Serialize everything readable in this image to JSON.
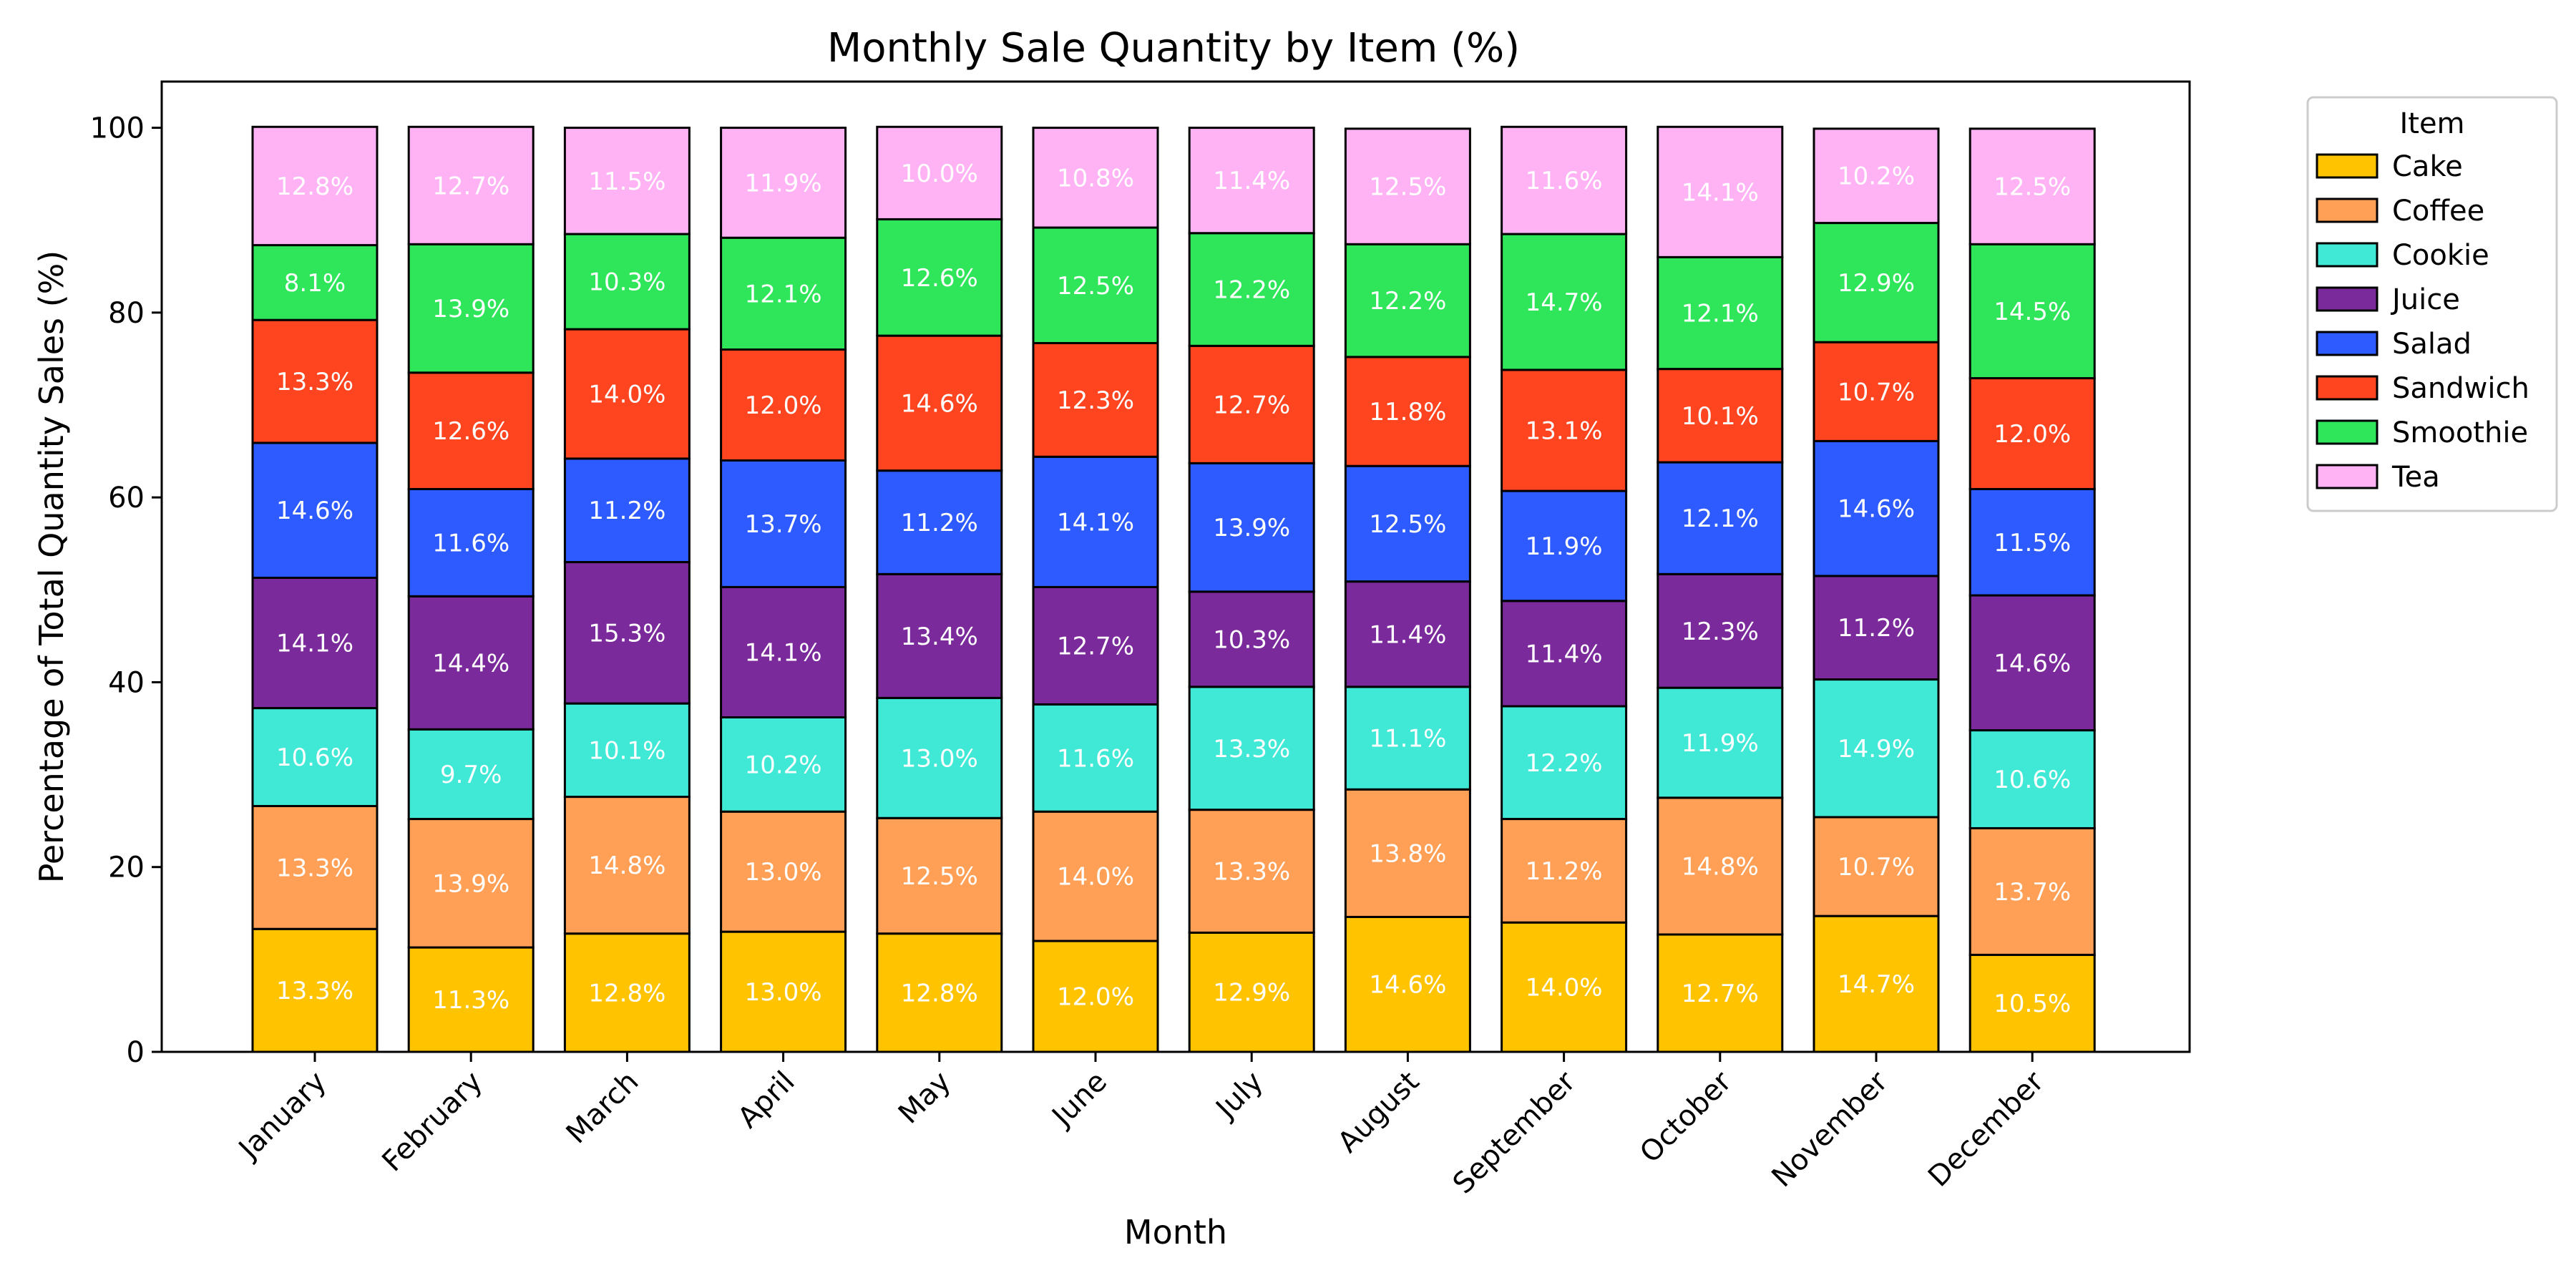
{
  "chart_data": {
    "type": "bar",
    "stacked": true,
    "title": "Monthly Sale Quantity by Item (%)",
    "xlabel": "Month",
    "ylabel": "Percentage of Total Quantity Sales (%)",
    "ylim": [
      0,
      105
    ],
    "yticks": [
      "0",
      "20",
      "40",
      "60",
      "80",
      "100"
    ],
    "grid": false,
    "legend": {
      "title": "Item",
      "placement": "outside-top-right"
    },
    "categories": [
      "January",
      "February",
      "March",
      "April",
      "May",
      "June",
      "July",
      "August",
      "September",
      "October",
      "November",
      "December"
    ],
    "series": [
      {
        "name": "Cake",
        "color": "#FFC300",
        "values": [
          13.3,
          11.3,
          12.8,
          13.0,
          12.8,
          12.0,
          12.9,
          14.6,
          14.0,
          12.7,
          14.7,
          10.5
        ]
      },
      {
        "name": "Coffee",
        "color": "#FFA056",
        "values": [
          13.3,
          13.9,
          14.8,
          13.0,
          12.5,
          14.0,
          13.3,
          13.8,
          11.2,
          14.8,
          10.7,
          13.7
        ]
      },
      {
        "name": "Cookie",
        "color": "#40E8D6",
        "values": [
          10.6,
          9.7,
          10.1,
          10.2,
          13.0,
          11.6,
          13.3,
          11.1,
          12.2,
          11.9,
          14.9,
          10.6
        ]
      },
      {
        "name": "Juice",
        "color": "#7A2A9A",
        "values": [
          14.1,
          14.4,
          15.3,
          14.1,
          13.4,
          12.7,
          10.3,
          11.4,
          11.4,
          12.3,
          11.2,
          14.6
        ]
      },
      {
        "name": "Salad",
        "color": "#2D5BFF",
        "values": [
          14.6,
          11.6,
          11.2,
          13.7,
          11.2,
          14.1,
          13.9,
          12.5,
          11.9,
          12.1,
          14.6,
          11.5
        ]
      },
      {
        "name": "Sandwich",
        "color": "#FF4520",
        "values": [
          13.3,
          12.6,
          14.0,
          12.0,
          14.6,
          12.3,
          12.7,
          11.8,
          13.1,
          10.1,
          10.7,
          12.0
        ]
      },
      {
        "name": "Smoothie",
        "color": "#2FE55A",
        "values": [
          8.1,
          13.9,
          10.3,
          12.1,
          12.6,
          12.5,
          12.2,
          12.2,
          14.7,
          12.1,
          12.9,
          14.5
        ]
      },
      {
        "name": "Tea",
        "color": "#FFB3F5",
        "values": [
          12.8,
          12.7,
          11.5,
          11.9,
          10.0,
          10.8,
          11.4,
          12.5,
          11.6,
          14.1,
          10.2,
          12.5
        ]
      }
    ]
  }
}
